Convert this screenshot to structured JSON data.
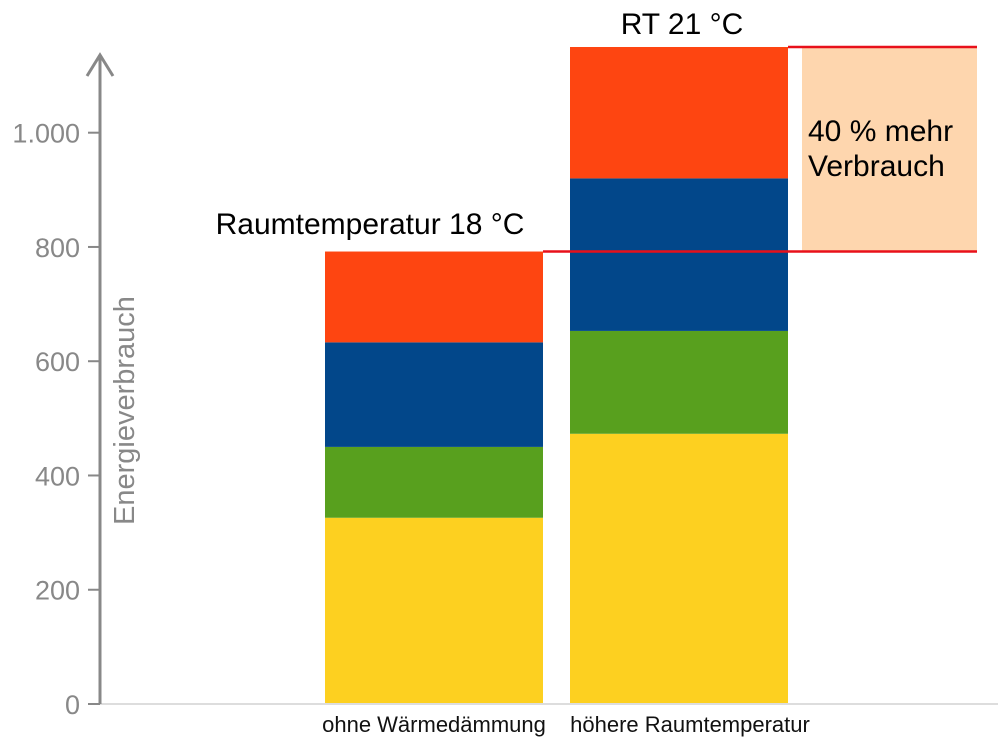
{
  "chart_data": {
    "type": "bar",
    "stacked": true,
    "categories": [
      "ohne Wärmedämmung",
      "höhere Raumtemperatur"
    ],
    "series": [
      {
        "color": "#fdd020",
        "values": [
          326,
          473
        ]
      },
      {
        "color": "#58a01e",
        "values": [
          124,
          180
        ]
      },
      {
        "color": "#02478a",
        "values": [
          183,
          267
        ]
      },
      {
        "color": "#fe4511",
        "values": [
          159,
          230
        ]
      }
    ],
    "totals": [
      792,
      1150
    ],
    "ylabel": "Energieverbrauch",
    "ylim": [
      0,
      1150
    ],
    "yticks": [
      0,
      200,
      400,
      600,
      800,
      1000
    ],
    "ytick_labels": [
      "0",
      "200",
      "400",
      "600",
      "800",
      "1.000"
    ],
    "grid": false,
    "annotations": {
      "bar1_top": "Raumtemperatur 18 °C",
      "bar2_top": "RT 21 °C",
      "diff_line1": "40 % mehr",
      "diff_line2": "Verbrauch"
    },
    "colors": {
      "axis": "#888888",
      "highlight_line": "#e8101a",
      "diff_box": "#fed6ae"
    }
  }
}
